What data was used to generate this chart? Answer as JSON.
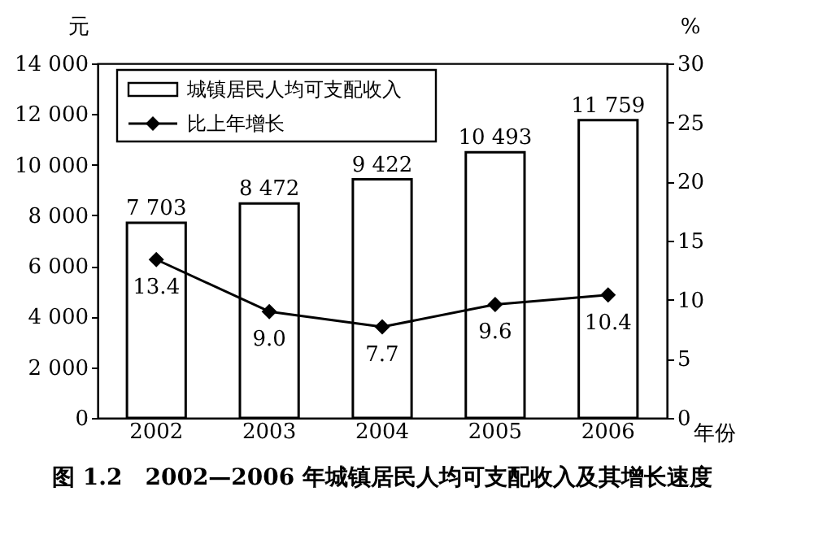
{
  "chart_data": {
    "type": "bar",
    "title": "图 1.2　2002—2006 年城镇居民人均可支配收入及其增长速度",
    "categories": [
      "2002",
      "2003",
      "2004",
      "2005",
      "2006"
    ],
    "xlabel": "年份",
    "ylabel": "元",
    "y2label": "%",
    "ylim": [
      0,
      14000
    ],
    "yticks": [
      0,
      {
        "value": 2000,
        "label": "2 000"
      },
      {
        "value": 4000,
        "label": "4 000"
      },
      {
        "value": 6000,
        "label": "6 000"
      },
      {
        "value": 8000,
        "label": "8 000"
      },
      {
        "value": 10000,
        "label": "10 000"
      },
      {
        "value": 12000,
        "label": "12 000"
      },
      {
        "value": 14000,
        "label": "14 000"
      }
    ],
    "y2lim": [
      0,
      30
    ],
    "y2ticks": [
      0,
      5,
      10,
      15,
      20,
      25,
      30
    ],
    "grid": false,
    "legend": "top left",
    "marker": "diamond",
    "series": [
      {
        "name": "城镇居民人均可支配收入",
        "color": "#ffffff",
        "values": [
          7703,
          8472,
          9422,
          10493,
          11759
        ],
        "value_labels": [
          "7 703",
          "8 472",
          "9 422",
          "10 493",
          "11 759"
        ]
      },
      {
        "name": "比上年增长",
        "type": "line",
        "axis": "y2",
        "color": "#000000",
        "values": [
          13.4,
          9.0,
          7.7,
          9.6,
          10.4
        ],
        "value_labels": [
          "13.4",
          "9.0",
          "7.7",
          "9.6",
          "10.4"
        ]
      }
    ]
  }
}
